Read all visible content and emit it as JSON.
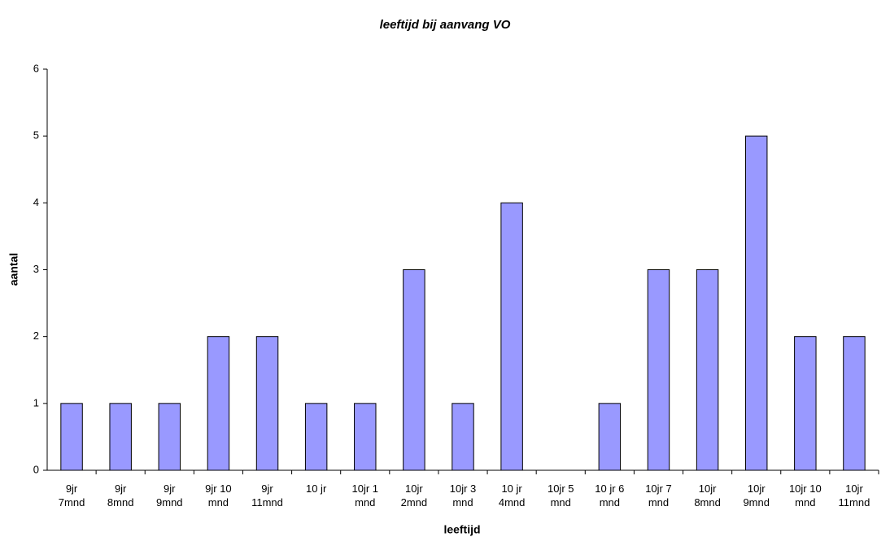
{
  "chart_data": {
    "type": "bar",
    "title": "leeftijd bij aanvang VO",
    "x_label": "leeftijd",
    "y_label": "aantal",
    "categories": [
      "9jr 7mnd",
      "9jr 8mnd",
      "9jr 9mnd",
      "9jr 10 mnd",
      "9jr 11mnd",
      "10 jr",
      "10jr 1 mnd",
      "10jr 2mnd",
      "10jr 3 mnd",
      "10 jr 4mnd",
      "10jr 5 mnd",
      "10 jr 6 mnd",
      "10jr 7 mnd",
      "10jr 8mnd",
      "10jr 9mnd",
      "10jr 10 mnd",
      "10jr 11mnd"
    ],
    "values": [
      1,
      1,
      1,
      2,
      2,
      1,
      1,
      3,
      1,
      4,
      0,
      1,
      3,
      3,
      5,
      2,
      2
    ],
    "color": "#9999ff",
    "ylim": [
      0,
      6
    ],
    "yticks": [
      0,
      1,
      2,
      3,
      4,
      5,
      6
    ],
    "grid": false
  }
}
